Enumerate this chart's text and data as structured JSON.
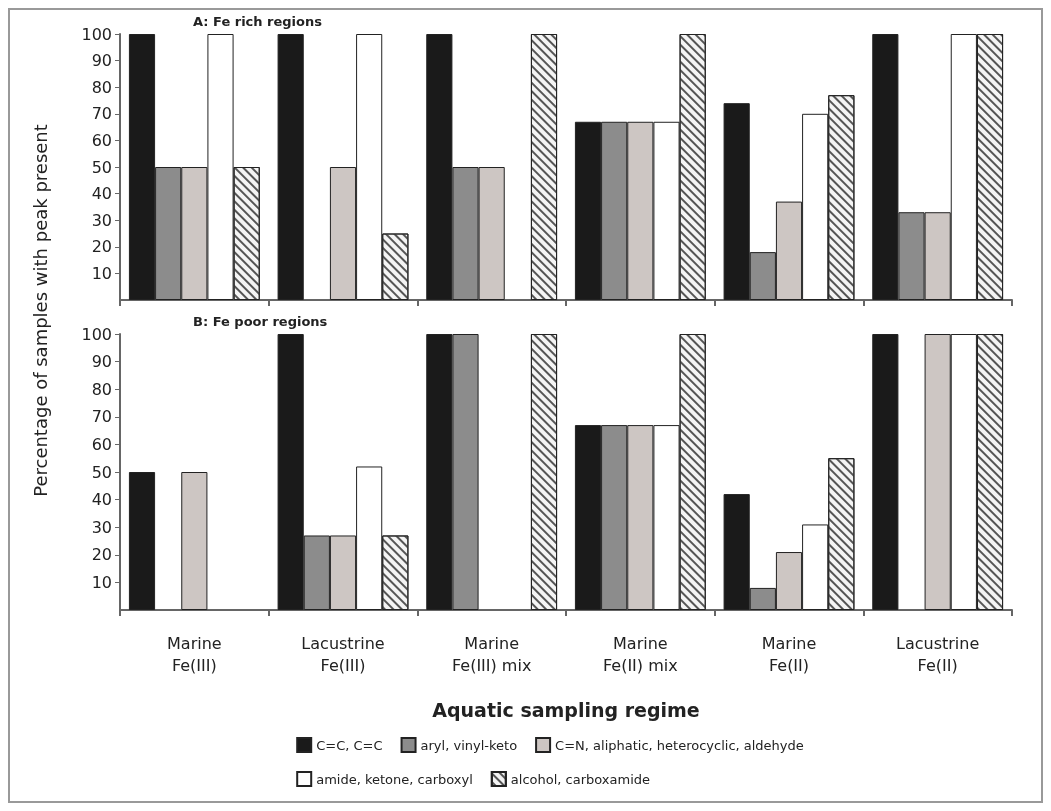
{
  "chart_data": [
    {
      "type": "bar",
      "title": "A: Fe rich regions",
      "ylabel": "Percentage of samples with peak present",
      "categories": [
        null,
        null,
        null,
        null,
        null,
        null
      ],
      "ylim": [
        0,
        100
      ],
      "yticks": [
        10,
        20,
        30,
        40,
        50,
        60,
        70,
        80,
        90,
        100
      ],
      "tick_labels": "y",
      "grid": false,
      "legend": false,
      "series": [
        {
          "color": "#1a1a1a",
          "values": [
            100,
            100,
            100,
            67,
            74,
            100
          ]
        },
        {
          "color": "#8c8c8c",
          "values": [
            50,
            null,
            50,
            67,
            18,
            33
          ]
        },
        {
          "color": "#cdc6c3",
          "values": [
            50,
            50,
            50,
            67,
            37,
            33
          ]
        },
        {
          "color": "#ffffff",
          "values": [
            100,
            100,
            null,
            67,
            70,
            100
          ]
        },
        {
          "color": "#f4f4f4",
          "values": [
            50,
            25,
            100,
            100,
            77,
            100
          ]
        }
      ]
    },
    {
      "type": "bar",
      "title": "B: Fe poor regions",
      "xlabel": "Aquatic sampling regime",
      "categories": [
        "Marine\nFe(III)",
        "Lacustrine\nFe(III)",
        "Marine\nFe(III) mix",
        "Marine\nFe(II) mix",
        "Marine\nFe(II)",
        "Lacustrine\nFe(II)"
      ],
      "ylim": [
        0,
        100
      ],
      "yticks": [
        10,
        20,
        30,
        40,
        50,
        60,
        70,
        80,
        90,
        100
      ],
      "grid": false,
      "legend": "bottom",
      "series": [
        {
          "name": "C=C, C=C",
          "color": "#1a1a1a",
          "values": [
            50,
            100,
            100,
            67,
            42,
            100
          ]
        },
        {
          "name": "aryl, vinyl-keto",
          "color": "#8c8c8c",
          "values": [
            null,
            27,
            100,
            67,
            8,
            null
          ]
        },
        {
          "name": "C=N, aliphatic, heterocyclic, aldehyde",
          "color": "#cdc6c3",
          "values": [
            50,
            27,
            null,
            67,
            21,
            100
          ]
        },
        {
          "name": "amide, ketone, carboxyl",
          "color": "#ffffff",
          "values": [
            null,
            52,
            null,
            67,
            31,
            100
          ]
        },
        {
          "name": "alcohol, carboxamide",
          "color": "#f4f4f4",
          "values": [
            null,
            27,
            100,
            100,
            55,
            100
          ]
        }
      ]
    }
  ]
}
